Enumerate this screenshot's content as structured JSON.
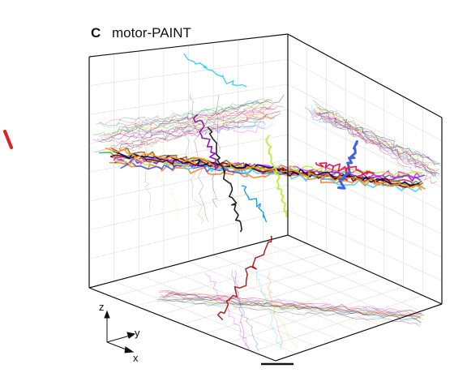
{
  "panel": {
    "label": "C",
    "title": "motor-PAINT"
  },
  "axes": {
    "z": "z",
    "y": "y",
    "x": "x"
  }
}
